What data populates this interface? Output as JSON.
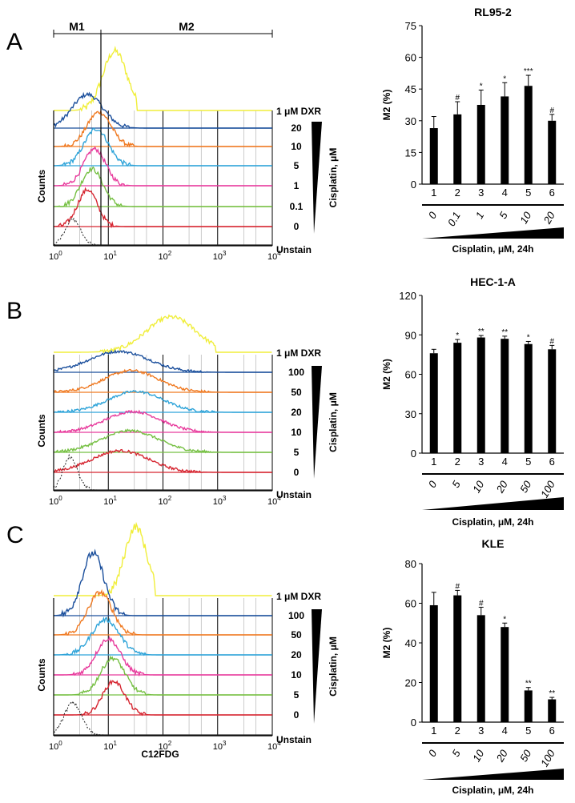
{
  "figure": {
    "marker_labels": {
      "m1": "M1",
      "m2": "M2"
    },
    "counts_label": "Counts",
    "x_axis_label": "C12FDG",
    "x_tick_base": "10",
    "x_tick_exponents": [
      "0",
      "1",
      "2",
      "3",
      "4"
    ],
    "dxr_label": "1 μM DXR",
    "unstain_label": "Unstain",
    "cisplatin_label": "Cisplatin, μM",
    "bar_xlabel": "Cisplatin, μM, 24h",
    "ylabel": "M2 (%)",
    "trace_colors": {
      "dxr": "#f0ee3a",
      "c6": "#1b4f9c",
      "c5": "#f07a22",
      "c4": "#2fa4d9",
      "c3": "#e83c9d",
      "c2": "#76c043",
      "c1": "#d62631",
      "unstain": "#222222"
    }
  },
  "panels": [
    {
      "letter": "A",
      "title": "RL95-2",
      "concentrations": [
        "20",
        "10",
        "5",
        "1",
        "0.1",
        "0"
      ]
    },
    {
      "letter": "B",
      "title": "HEC-1-A",
      "concentrations": [
        "100",
        "50",
        "20",
        "10",
        "5",
        "0"
      ]
    },
    {
      "letter": "C",
      "title": "KLE",
      "concentrations": [
        "100",
        "50",
        "20",
        "10",
        "5",
        "0"
      ]
    }
  ],
  "chart_data": [
    {
      "type": "bar",
      "title": "RL95-2",
      "xlabel": "Cisplatin, μM, 24h",
      "ylabel": "M2 (%)",
      "categories": [
        "1",
        "2",
        "3",
        "4",
        "5",
        "6"
      ],
      "concentration_labels": [
        "0",
        "0.1",
        "1",
        "5",
        "10",
        "20"
      ],
      "values": [
        26.5,
        33,
        37.5,
        41.5,
        46.5,
        30
      ],
      "errors": [
        5.5,
        6,
        7,
        6.5,
        5,
        3
      ],
      "significance": [
        "",
        "#",
        "*",
        "*",
        "***",
        "#"
      ],
      "ylim": [
        0,
        75
      ],
      "yticks": [
        0,
        15,
        30,
        45,
        60,
        75
      ]
    },
    {
      "type": "bar",
      "title": "HEC-1-A",
      "xlabel": "Cisplatin, μM, 24h",
      "ylabel": "M2 (%)",
      "categories": [
        "1",
        "2",
        "3",
        "4",
        "5",
        "6"
      ],
      "concentration_labels": [
        "0",
        "5",
        "10",
        "20",
        "50",
        "100"
      ],
      "values": [
        76,
        84,
        88,
        87,
        83,
        79
      ],
      "errors": [
        3,
        2.5,
        1.5,
        2,
        2,
        3
      ],
      "significance": [
        "",
        "*",
        "**",
        "**",
        "*",
        "#"
      ],
      "ylim": [
        0,
        120
      ],
      "yticks": [
        0,
        30,
        60,
        90,
        120
      ]
    },
    {
      "type": "bar",
      "title": "KLE",
      "xlabel": "Cisplatin, μM, 24h",
      "ylabel": "M2 (%)",
      "categories": [
        "1",
        "2",
        "3",
        "4",
        "5",
        "6"
      ],
      "concentration_labels": [
        "0",
        "5",
        "10",
        "20",
        "50",
        "100"
      ],
      "values": [
        59,
        64,
        54,
        48,
        16,
        11.5
      ],
      "errors": [
        6.5,
        2.5,
        4,
        2,
        1.5,
        1
      ],
      "significance": [
        "",
        "#",
        "#",
        "*",
        "**",
        "**"
      ],
      "ylim": [
        0,
        80
      ],
      "yticks": [
        0,
        20,
        40,
        60,
        80
      ]
    }
  ]
}
